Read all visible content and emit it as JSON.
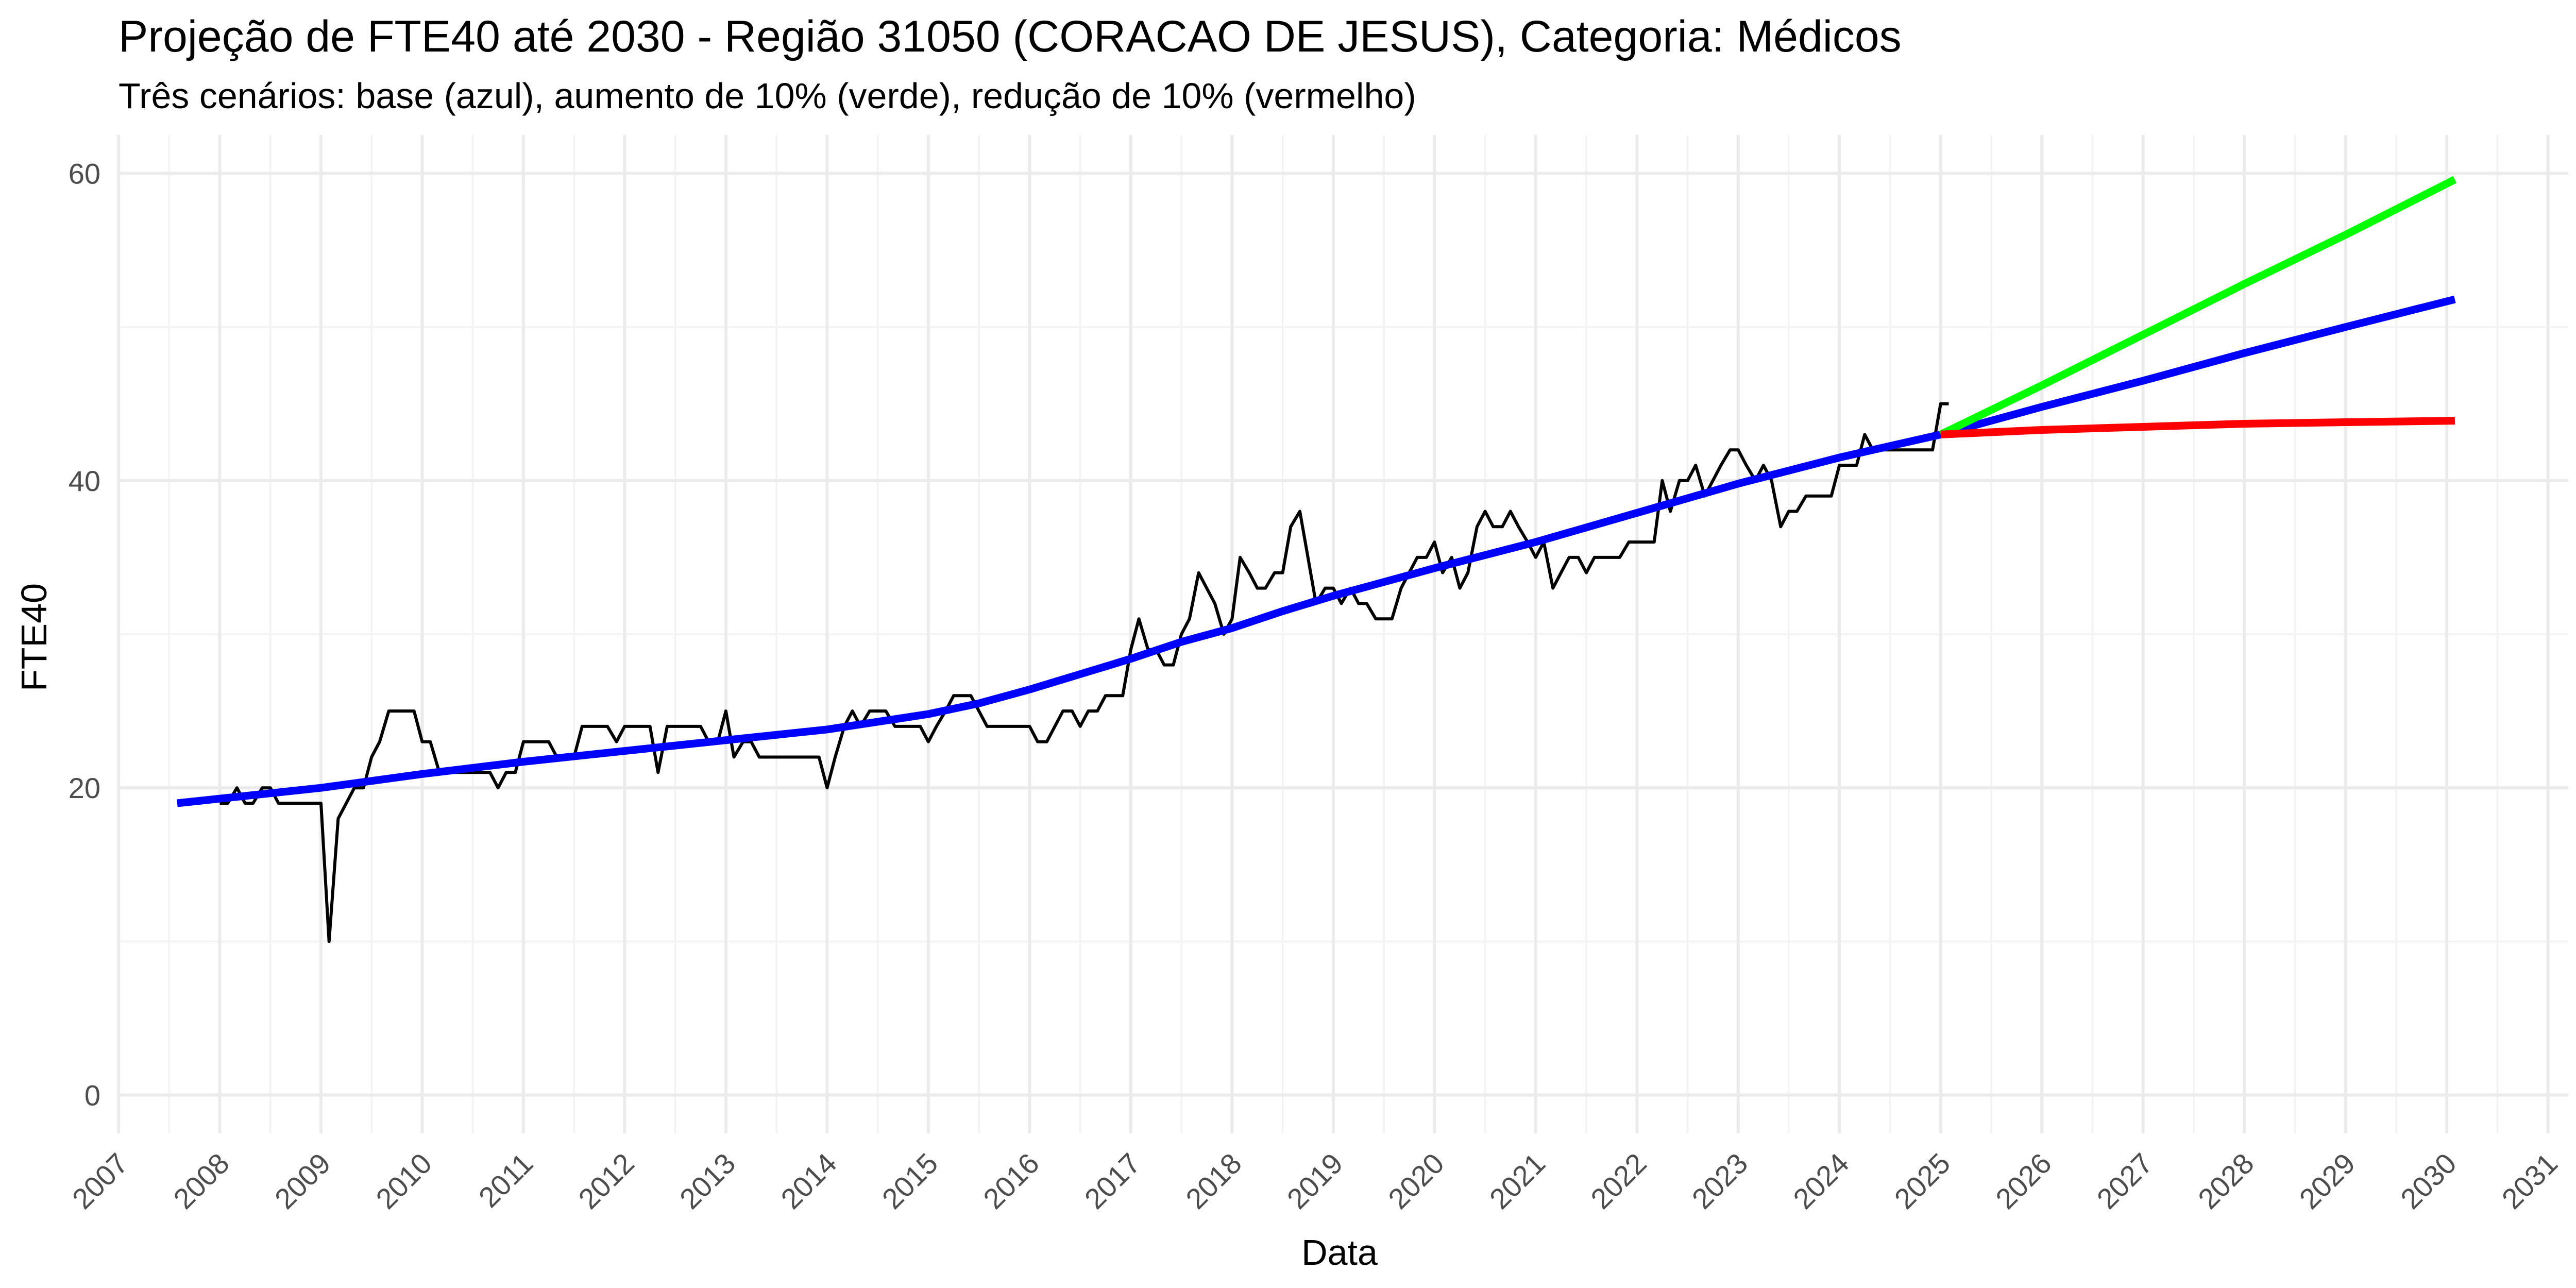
{
  "chart_data": {
    "type": "line",
    "title": "Projeção de FTE40 até 2030 - Região 31050 (CORACAO DE JESUS), Categoria: Médicos",
    "subtitle": "Três cenários: base (azul), aumento de 10% (verde), redução de 10% (vermelho)",
    "xlabel": "Data",
    "ylabel": "FTE40",
    "xlim": [
      2007.0,
      2031.2
    ],
    "ylim": [
      -2.5,
      62.5
    ],
    "x_ticks": [
      "2007",
      "2008",
      "2009",
      "2010",
      "2011",
      "2012",
      "2013",
      "2014",
      "2015",
      "2016",
      "2017",
      "2018",
      "2019",
      "2020",
      "2021",
      "2022",
      "2023",
      "2024",
      "2025",
      "2026",
      "2027",
      "2028",
      "2029",
      "2030",
      "2031"
    ],
    "y_ticks": [
      "0",
      "20",
      "40",
      "60"
    ],
    "grid": true,
    "legend": "none",
    "colors": {
      "observed": "#000000",
      "base": "#0000ff",
      "increase": "#00ff00",
      "decrease": "#ff0000"
    },
    "series": [
      {
        "key": "observed",
        "x": [
          2008.0,
          2008.08,
          2008.17,
          2008.25,
          2008.33,
          2008.42,
          2008.5,
          2008.58,
          2008.67,
          2008.75,
          2008.83,
          2008.92,
          2009.0,
          2009.08,
          2009.17,
          2009.25,
          2009.33,
          2009.42,
          2009.5,
          2009.58,
          2009.67,
          2009.75,
          2009.83,
          2009.92,
          2010.0,
          2010.08,
          2010.17,
          2010.25,
          2010.33,
          2010.42,
          2010.5,
          2010.58,
          2010.67,
          2010.75,
          2010.83,
          2010.92,
          2011.0,
          2011.08,
          2011.17,
          2011.25,
          2011.33,
          2011.42,
          2011.5,
          2011.58,
          2011.67,
          2011.75,
          2011.83,
          2011.92,
          2012.0,
          2012.08,
          2012.17,
          2012.25,
          2012.33,
          2012.42,
          2012.5,
          2012.58,
          2012.67,
          2012.75,
          2012.83,
          2012.92,
          2013.0,
          2013.08,
          2013.17,
          2013.25,
          2013.33,
          2013.42,
          2013.5,
          2013.58,
          2013.67,
          2013.75,
          2013.83,
          2013.92,
          2014.0,
          2014.08,
          2014.17,
          2014.25,
          2014.33,
          2014.42,
          2014.5,
          2014.58,
          2014.67,
          2014.75,
          2014.83,
          2014.92,
          2015.0,
          2015.08,
          2015.17,
          2015.25,
          2015.33,
          2015.42,
          2015.5,
          2015.58,
          2015.67,
          2015.75,
          2015.83,
          2015.92,
          2016.0,
          2016.08,
          2016.17,
          2016.25,
          2016.33,
          2016.42,
          2016.5,
          2016.58,
          2016.67,
          2016.75,
          2016.83,
          2016.92,
          2017.0,
          2017.08,
          2017.17,
          2017.25,
          2017.33,
          2017.42,
          2017.5,
          2017.58,
          2017.67,
          2017.75,
          2017.83,
          2017.92,
          2018.0,
          2018.08,
          2018.17,
          2018.25,
          2018.33,
          2018.42,
          2018.5,
          2018.58,
          2018.67,
          2018.75,
          2018.83,
          2018.92,
          2019.0,
          2019.08,
          2019.17,
          2019.25,
          2019.33,
          2019.42,
          2019.5,
          2019.58,
          2019.67,
          2019.75,
          2019.83,
          2019.92,
          2020.0,
          2020.08,
          2020.17,
          2020.25,
          2020.33,
          2020.42,
          2020.5,
          2020.58,
          2020.67,
          2020.75,
          2020.83,
          2020.92,
          2021.0,
          2021.08,
          2021.17,
          2021.25,
          2021.33,
          2021.42,
          2021.5,
          2021.58,
          2021.67,
          2021.75,
          2021.83,
          2021.92,
          2022.0,
          2022.08,
          2022.17,
          2022.25,
          2022.33,
          2022.42,
          2022.5,
          2022.58,
          2022.67,
          2022.75,
          2022.83,
          2022.92,
          2023.0,
          2023.08,
          2023.17,
          2023.25,
          2023.33,
          2023.42,
          2023.5,
          2023.58,
          2023.67,
          2023.75,
          2023.83,
          2023.92,
          2024.0,
          2024.08,
          2024.17,
          2024.25,
          2024.33,
          2024.42,
          2024.5,
          2024.58,
          2024.67,
          2024.75,
          2024.83,
          2024.92,
          2025.0,
          2025.08
        ],
        "values": [
          19,
          19,
          20,
          19,
          19,
          20,
          20,
          19,
          19,
          19,
          19,
          19,
          19,
          10,
          18,
          19,
          20,
          20,
          22,
          23,
          25,
          25,
          25,
          25,
          23,
          23,
          21,
          21,
          21,
          21,
          21,
          21,
          21,
          20,
          21,
          21,
          23,
          23,
          23,
          23,
          22,
          22,
          22,
          24,
          24,
          24,
          24,
          23,
          24,
          24,
          24,
          24,
          21,
          24,
          24,
          24,
          24,
          24,
          23,
          23,
          25,
          22,
          23,
          23,
          22,
          22,
          22,
          22,
          22,
          22,
          22,
          22,
          20,
          22,
          24,
          25,
          24,
          25,
          25,
          25,
          24,
          24,
          24,
          24,
          23,
          24,
          25,
          26,
          26,
          26,
          25,
          24,
          24,
          24,
          24,
          24,
          24,
          23,
          23,
          24,
          25,
          25,
          24,
          25,
          25,
          26,
          26,
          26,
          29,
          31,
          29,
          29,
          28,
          28,
          30,
          31,
          34,
          33,
          32,
          30,
          31,
          35,
          34,
          33,
          33,
          34,
          34,
          37,
          38,
          35,
          32,
          33,
          33,
          32,
          33,
          32,
          32,
          31,
          31,
          31,
          33,
          34,
          35,
          35,
          36,
          34,
          35,
          33,
          34,
          37,
          38,
          37,
          37,
          38,
          37,
          36,
          35,
          36,
          33,
          34,
          35,
          35,
          34,
          35,
          35,
          35,
          35,
          36,
          36,
          36,
          36,
          40,
          38,
          40,
          40,
          41,
          39,
          40,
          41,
          42,
          42,
          41,
          40,
          41,
          40,
          37,
          38,
          38,
          39,
          39,
          39,
          39,
          41,
          41,
          41,
          43,
          42,
          42,
          42,
          42,
          42,
          42,
          42,
          42,
          45,
          45
        ]
      },
      {
        "key": "base",
        "x": [
          2007.58,
          2009.0,
          2010.0,
          2011.0,
          2012.0,
          2013.0,
          2014.0,
          2015.0,
          2015.5,
          2016.0,
          2016.5,
          2017.0,
          2017.5,
          2018.0,
          2018.5,
          2019.0,
          2020.0,
          2021.0,
          2022.0,
          2023.0,
          2024.0,
          2025.0,
          2026.0,
          2027.0,
          2028.0,
          2029.0,
          2030.08
        ],
        "values": [
          19.0,
          20.0,
          20.9,
          21.7,
          22.4,
          23.1,
          23.8,
          24.8,
          25.5,
          26.4,
          27.4,
          28.4,
          29.5,
          30.4,
          31.5,
          32.5,
          34.3,
          36.0,
          37.9,
          39.8,
          41.5,
          43.0,
          44.8,
          46.5,
          48.3,
          50.0,
          51.8
        ]
      },
      {
        "key": "increase",
        "x": [
          2025.0,
          2026.0,
          2027.0,
          2028.0,
          2029.0,
          2030.08
        ],
        "values": [
          43.0,
          46.2,
          49.5,
          52.8,
          56.0,
          59.6
        ]
      },
      {
        "key": "decrease",
        "x": [
          2025.0,
          2026.0,
          2027.0,
          2028.0,
          2029.0,
          2030.08
        ],
        "values": [
          43.0,
          43.3,
          43.5,
          43.7,
          43.8,
          43.9
        ]
      }
    ]
  }
}
